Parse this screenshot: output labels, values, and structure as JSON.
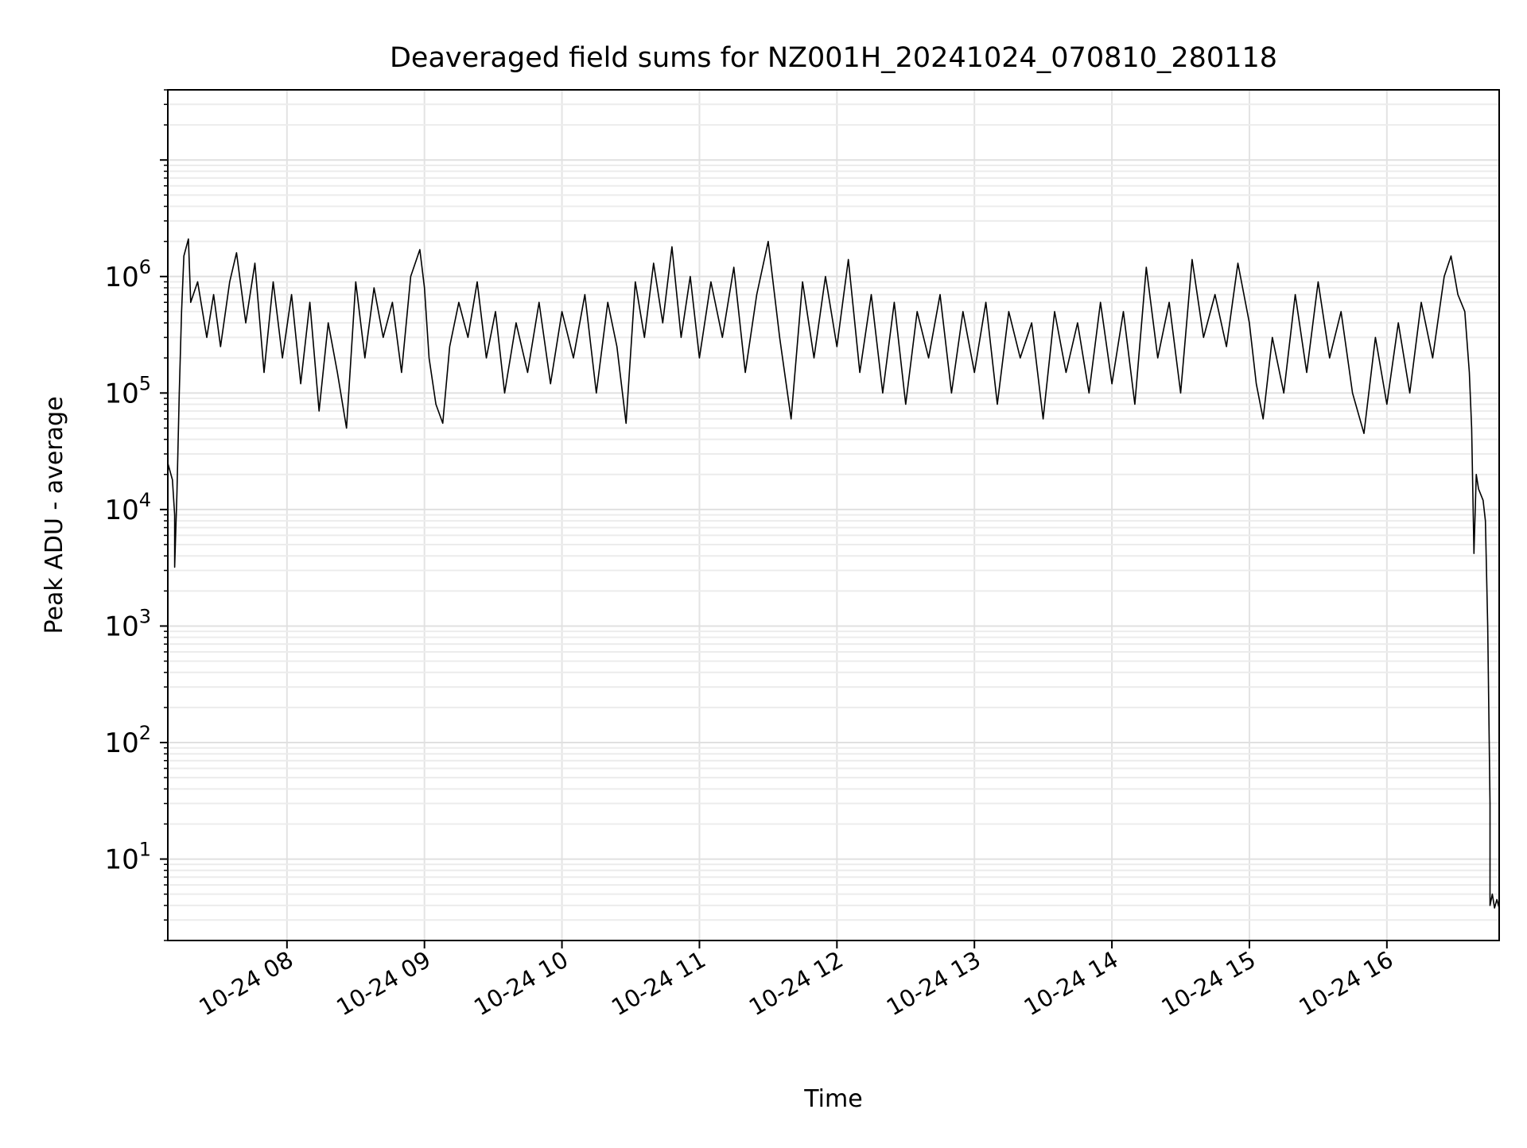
{
  "chart_data": {
    "type": "line",
    "title": "Deaveraged field sums for NZ001H_20241024_070810_280118",
    "xlabel": "Time",
    "ylabel": "Peak ADU - average",
    "yscale": "log",
    "ylim": [
      2,
      40000000
    ],
    "xlim": [
      "2024-10-24 07:08",
      "2024-10-24 16:49"
    ],
    "grid": true,
    "x_ticks": [
      {
        "t": "2024-10-24 08:00",
        "label": "10-24 08"
      },
      {
        "t": "2024-10-24 09:00",
        "label": "10-24 09"
      },
      {
        "t": "2024-10-24 10:00",
        "label": "10-24 10"
      },
      {
        "t": "2024-10-24 11:00",
        "label": "10-24 11"
      },
      {
        "t": "2024-10-24 12:00",
        "label": "10-24 12"
      },
      {
        "t": "2024-10-24 13:00",
        "label": "10-24 13"
      },
      {
        "t": "2024-10-24 14:00",
        "label": "10-24 14"
      },
      {
        "t": "2024-10-24 15:00",
        "label": "10-24 15"
      },
      {
        "t": "2024-10-24 16:00",
        "label": "10-24 16"
      }
    ],
    "y_ticks": [
      {
        "value": 10,
        "base": "10",
        "exp": "1"
      },
      {
        "value": 100,
        "base": "10",
        "exp": "2"
      },
      {
        "value": 1000,
        "base": "10",
        "exp": "3"
      },
      {
        "value": 10000,
        "base": "10",
        "exp": "4"
      },
      {
        "value": 100000,
        "base": "10",
        "exp": "5"
      },
      {
        "value": 1000000,
        "base": "10",
        "exp": "6"
      }
    ],
    "series": [
      {
        "color": "#000000",
        "points": [
          [
            "2024-10-24 07:08",
            25000
          ],
          [
            "2024-10-24 07:10",
            18000
          ],
          [
            "2024-10-24 07:11",
            9000
          ],
          [
            "2024-10-24 07:11",
            3200
          ],
          [
            "2024-10-24 07:12",
            14000
          ],
          [
            "2024-10-24 07:13",
            100000
          ],
          [
            "2024-10-24 07:14",
            500000
          ],
          [
            "2024-10-24 07:15",
            1500000
          ],
          [
            "2024-10-24 07:17",
            2100000
          ],
          [
            "2024-10-24 07:18",
            600000
          ],
          [
            "2024-10-24 07:21",
            900000
          ],
          [
            "2024-10-24 07:25",
            300000
          ],
          [
            "2024-10-24 07:28",
            700000
          ],
          [
            "2024-10-24 07:31",
            250000
          ],
          [
            "2024-10-24 07:35",
            900000
          ],
          [
            "2024-10-24 07:38",
            1600000
          ],
          [
            "2024-10-24 07:42",
            400000
          ],
          [
            "2024-10-24 07:46",
            1300000
          ],
          [
            "2024-10-24 07:50",
            150000
          ],
          [
            "2024-10-24 07:54",
            900000
          ],
          [
            "2024-10-24 07:58",
            200000
          ],
          [
            "2024-10-24 08:02",
            700000
          ],
          [
            "2024-10-24 08:06",
            120000
          ],
          [
            "2024-10-24 08:10",
            600000
          ],
          [
            "2024-10-24 08:14",
            70000
          ],
          [
            "2024-10-24 08:18",
            400000
          ],
          [
            "2024-10-24 08:22",
            150000
          ],
          [
            "2024-10-24 08:26",
            50000
          ],
          [
            "2024-10-24 08:30",
            900000
          ],
          [
            "2024-10-24 08:34",
            200000
          ],
          [
            "2024-10-24 08:38",
            800000
          ],
          [
            "2024-10-24 08:42",
            300000
          ],
          [
            "2024-10-24 08:46",
            600000
          ],
          [
            "2024-10-24 08:50",
            150000
          ],
          [
            "2024-10-24 08:54",
            1000000
          ],
          [
            "2024-10-24 08:58",
            1700000
          ],
          [
            "2024-10-24 09:00",
            800000
          ],
          [
            "2024-10-24 09:02",
            200000
          ],
          [
            "2024-10-24 09:05",
            80000
          ],
          [
            "2024-10-24 09:08",
            55000
          ],
          [
            "2024-10-24 09:11",
            250000
          ],
          [
            "2024-10-24 09:15",
            600000
          ],
          [
            "2024-10-24 09:19",
            300000
          ],
          [
            "2024-10-24 09:23",
            900000
          ],
          [
            "2024-10-24 09:27",
            200000
          ],
          [
            "2024-10-24 09:31",
            500000
          ],
          [
            "2024-10-24 09:35",
            100000
          ],
          [
            "2024-10-24 09:40",
            400000
          ],
          [
            "2024-10-24 09:45",
            150000
          ],
          [
            "2024-10-24 09:50",
            600000
          ],
          [
            "2024-10-24 09:55",
            120000
          ],
          [
            "2024-10-24 10:00",
            500000
          ],
          [
            "2024-10-24 10:05",
            200000
          ],
          [
            "2024-10-24 10:10",
            700000
          ],
          [
            "2024-10-24 10:15",
            100000
          ],
          [
            "2024-10-24 10:20",
            600000
          ],
          [
            "2024-10-24 10:24",
            250000
          ],
          [
            "2024-10-24 10:28",
            55000
          ],
          [
            "2024-10-24 10:32",
            900000
          ],
          [
            "2024-10-24 10:36",
            300000
          ],
          [
            "2024-10-24 10:40",
            1300000
          ],
          [
            "2024-10-24 10:44",
            400000
          ],
          [
            "2024-10-24 10:48",
            1800000
          ],
          [
            "2024-10-24 10:52",
            300000
          ],
          [
            "2024-10-24 10:56",
            1000000
          ],
          [
            "2024-10-24 11:00",
            200000
          ],
          [
            "2024-10-24 11:05",
            900000
          ],
          [
            "2024-10-24 11:10",
            300000
          ],
          [
            "2024-10-24 11:15",
            1200000
          ],
          [
            "2024-10-24 11:20",
            150000
          ],
          [
            "2024-10-24 11:25",
            700000
          ],
          [
            "2024-10-24 11:30",
            2000000
          ],
          [
            "2024-10-24 11:35",
            300000
          ],
          [
            "2024-10-24 11:40",
            60000
          ],
          [
            "2024-10-24 11:45",
            900000
          ],
          [
            "2024-10-24 11:50",
            200000
          ],
          [
            "2024-10-24 11:55",
            1000000
          ],
          [
            "2024-10-24 12:00",
            250000
          ],
          [
            "2024-10-24 12:05",
            1400000
          ],
          [
            "2024-10-24 12:10",
            150000
          ],
          [
            "2024-10-24 12:15",
            700000
          ],
          [
            "2024-10-24 12:20",
            100000
          ],
          [
            "2024-10-24 12:25",
            600000
          ],
          [
            "2024-10-24 12:30",
            80000
          ],
          [
            "2024-10-24 12:35",
            500000
          ],
          [
            "2024-10-24 12:40",
            200000
          ],
          [
            "2024-10-24 12:45",
            700000
          ],
          [
            "2024-10-24 12:50",
            100000
          ],
          [
            "2024-10-24 12:55",
            500000
          ],
          [
            "2024-10-24 13:00",
            150000
          ],
          [
            "2024-10-24 13:05",
            600000
          ],
          [
            "2024-10-24 13:10",
            80000
          ],
          [
            "2024-10-24 13:15",
            500000
          ],
          [
            "2024-10-24 13:20",
            200000
          ],
          [
            "2024-10-24 13:25",
            400000
          ],
          [
            "2024-10-24 13:30",
            60000
          ],
          [
            "2024-10-24 13:35",
            500000
          ],
          [
            "2024-10-24 13:40",
            150000
          ],
          [
            "2024-10-24 13:45",
            400000
          ],
          [
            "2024-10-24 13:50",
            100000
          ],
          [
            "2024-10-24 13:55",
            600000
          ],
          [
            "2024-10-24 14:00",
            120000
          ],
          [
            "2024-10-24 14:05",
            500000
          ],
          [
            "2024-10-24 14:10",
            80000
          ],
          [
            "2024-10-24 14:15",
            1200000
          ],
          [
            "2024-10-24 14:20",
            200000
          ],
          [
            "2024-10-24 14:25",
            600000
          ],
          [
            "2024-10-24 14:30",
            100000
          ],
          [
            "2024-10-24 14:35",
            1400000
          ],
          [
            "2024-10-24 14:40",
            300000
          ],
          [
            "2024-10-24 14:45",
            700000
          ],
          [
            "2024-10-24 14:50",
            250000
          ],
          [
            "2024-10-24 14:55",
            1300000
          ],
          [
            "2024-10-24 15:00",
            400000
          ],
          [
            "2024-10-24 15:03",
            120000
          ],
          [
            "2024-10-24 15:06",
            60000
          ],
          [
            "2024-10-24 15:10",
            300000
          ],
          [
            "2024-10-24 15:15",
            100000
          ],
          [
            "2024-10-24 15:20",
            700000
          ],
          [
            "2024-10-24 15:25",
            150000
          ],
          [
            "2024-10-24 15:30",
            900000
          ],
          [
            "2024-10-24 15:35",
            200000
          ],
          [
            "2024-10-24 15:40",
            500000
          ],
          [
            "2024-10-24 15:45",
            100000
          ],
          [
            "2024-10-24 15:50",
            45000
          ],
          [
            "2024-10-24 15:55",
            300000
          ],
          [
            "2024-10-24 16:00",
            80000
          ],
          [
            "2024-10-24 16:05",
            400000
          ],
          [
            "2024-10-24 16:10",
            100000
          ],
          [
            "2024-10-24 16:15",
            600000
          ],
          [
            "2024-10-24 16:20",
            200000
          ],
          [
            "2024-10-24 16:25",
            1000000
          ],
          [
            "2024-10-24 16:28",
            1500000
          ],
          [
            "2024-10-24 16:31",
            700000
          ],
          [
            "2024-10-24 16:34",
            500000
          ],
          [
            "2024-10-24 16:36",
            150000
          ],
          [
            "2024-10-24 16:37",
            50000
          ],
          [
            "2024-10-24 16:38",
            4200
          ],
          [
            "2024-10-24 16:39",
            20000
          ],
          [
            "2024-10-24 16:40",
            15000
          ],
          [
            "2024-10-24 16:42",
            12000
          ],
          [
            "2024-10-24 16:43",
            8000
          ],
          [
            "2024-10-24 16:44",
            1000
          ],
          [
            "2024-10-24 16:45",
            30
          ],
          [
            "2024-10-24 16:45",
            4
          ],
          [
            "2024-10-24 16:46",
            5
          ],
          [
            "2024-10-24 16:47",
            3.8
          ],
          [
            "2024-10-24 16:48",
            4.5
          ],
          [
            "2024-10-24 16:49",
            3.8
          ]
        ]
      }
    ]
  }
}
